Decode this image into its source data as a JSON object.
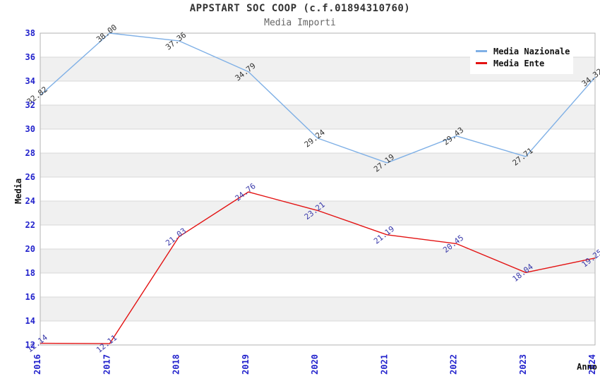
{
  "chart_data": {
    "type": "line",
    "title": "APPSTART SOC COOP (c.f.01894310760)",
    "subtitle": "Media Importi",
    "xlabel": "Anno",
    "ylabel": "Media",
    "x": [
      "2016",
      "2017",
      "2018",
      "2019",
      "2020",
      "2021",
      "2022",
      "2023",
      "2024"
    ],
    "ylim": [
      12,
      38
    ],
    "ytick_step": 2,
    "grid": "horizontal-bands",
    "legend_position": "top-right",
    "series": [
      {
        "name": "Media Nazionale",
        "color": "#7fb0e6",
        "label_color": "#333333",
        "values": [
          32.82,
          38.0,
          37.36,
          34.79,
          29.24,
          27.19,
          29.43,
          27.71,
          34.32
        ]
      },
      {
        "name": "Media Ente",
        "color": "#e31212",
        "label_color": "#3939aa",
        "values": [
          12.14,
          12.11,
          21.03,
          24.76,
          23.21,
          21.19,
          20.45,
          18.04,
          19.25
        ]
      }
    ],
    "colors": {
      "axis_tick_label": "#2222cc",
      "band_fill": "#f0f0f0",
      "gridline": "#d9d9d9",
      "plot_border": "#b3b3b3",
      "title": "#333333",
      "subtitle": "#666666",
      "axis_title": "#111111"
    }
  }
}
